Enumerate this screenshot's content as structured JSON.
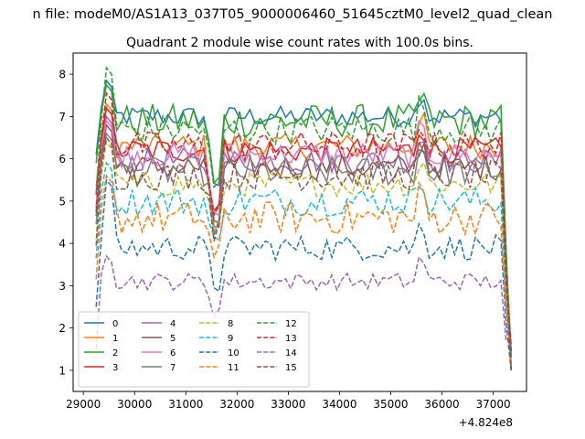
{
  "chart_data": {
    "type": "line",
    "suptitle": "n file: modeM0/AS1A13_037T05_9000006460_51645cztM0_level2_quad_clean",
    "title": "Quadrant 2 module wise count rates with 100.0s bins.",
    "xlabel": "",
    "ylabel": "",
    "x_offset_label": "+4.824e8",
    "xlim": [
      28800,
      37650
    ],
    "ylim": [
      0.5,
      8.5
    ],
    "xticks": [
      29000,
      30000,
      31000,
      32000,
      33000,
      34000,
      35000,
      36000,
      37000
    ],
    "yticks": [
      1,
      2,
      3,
      4,
      5,
      6,
      7,
      8
    ],
    "x_range": [
      29250,
      37350
    ],
    "x_step": 100,
    "legend_position": "lower-left",
    "series": [
      {
        "name": "0",
        "color": "#1f77b4",
        "dash": "solid",
        "level": 7.0,
        "amp": 0.25,
        "peak": 7.85
      },
      {
        "name": "1",
        "color": "#ff7f0e",
        "dash": "solid",
        "level": 6.3,
        "amp": 0.3,
        "peak": 7.3
      },
      {
        "name": "2",
        "color": "#2ca02c",
        "dash": "solid",
        "level": 6.9,
        "amp": 0.4,
        "peak": 7.75
      },
      {
        "name": "3",
        "color": "#d62728",
        "dash": "solid",
        "level": 6.2,
        "amp": 0.3,
        "peak": 7.2
      },
      {
        "name": "4",
        "color": "#9467bd",
        "dash": "solid",
        "level": 5.95,
        "amp": 0.3,
        "peak": 7.0
      },
      {
        "name": "5",
        "color": "#8c564b",
        "dash": "solid",
        "level": 5.8,
        "amp": 0.3,
        "peak": 6.8
      },
      {
        "name": "6",
        "color": "#e377c2",
        "dash": "solid",
        "level": 6.1,
        "amp": 0.3,
        "peak": 6.9
      },
      {
        "name": "7",
        "color": "#7f7f7f",
        "dash": "solid",
        "level": 5.7,
        "amp": 0.35,
        "peak": 6.6
      },
      {
        "name": "8",
        "color": "#bcbd22",
        "dash": "dashed",
        "level": 5.4,
        "amp": 0.3,
        "peak": 6.4
      },
      {
        "name": "9",
        "color": "#17becf",
        "dash": "dashed",
        "level": 5.0,
        "amp": 0.35,
        "peak": 5.9
      },
      {
        "name": "10",
        "color": "#1f77b4",
        "dash": "dashed",
        "level": 3.9,
        "amp": 0.3,
        "peak": 5.5
      },
      {
        "name": "11",
        "color": "#ff7f0e",
        "dash": "dashed",
        "level": 4.6,
        "amp": 0.4,
        "peak": 5.6
      },
      {
        "name": "12",
        "color": "#2ca02c",
        "dash": "dashed",
        "level": 6.7,
        "amp": 0.35,
        "peak": 8.15
      },
      {
        "name": "13",
        "color": "#d62728",
        "dash": "dashed",
        "level": 6.3,
        "amp": 0.35,
        "peak": 7.55
      },
      {
        "name": "14",
        "color": "#9467bd",
        "dash": "dashed",
        "level": 3.1,
        "amp": 0.2,
        "peak": 3.7
      },
      {
        "name": "15",
        "color": "#8c564b",
        "dash": "dashed",
        "level": 5.6,
        "amp": 0.35,
        "peak": 6.5
      }
    ]
  }
}
